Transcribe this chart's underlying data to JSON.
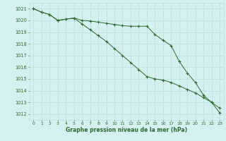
{
  "line1": [
    1021.0,
    1020.7,
    1020.5,
    1020.0,
    1020.1,
    1020.2,
    1020.0,
    1019.95,
    1019.85,
    1019.75,
    1019.65,
    1019.55,
    1019.5,
    1019.5,
    1019.5,
    1018.8,
    1018.3,
    1017.85,
    1016.5,
    1015.5,
    1014.7,
    1013.6,
    1013.0,
    1012.5
  ],
  "line2": [
    1021.0,
    1020.7,
    1020.5,
    1020.0,
    1020.1,
    1020.2,
    1019.7,
    1019.2,
    1018.7,
    1018.2,
    1017.6,
    1017.0,
    1016.4,
    1015.8,
    1015.2,
    1015.0,
    1014.9,
    1014.7,
    1014.4,
    1014.1,
    1013.8,
    1013.4,
    1013.0,
    1012.1
  ],
  "x": [
    0,
    1,
    2,
    3,
    4,
    5,
    6,
    7,
    8,
    9,
    10,
    11,
    12,
    13,
    14,
    15,
    16,
    17,
    18,
    19,
    20,
    21,
    22,
    23
  ],
  "line_color": "#2d6a2d",
  "bg_color": "#d4f0f0",
  "grid_color": "#b8dede",
  "xlabel": "Graphe pression niveau de la mer (hPa)",
  "ylim": [
    1011.5,
    1021.5
  ],
  "xlim": [
    -0.5,
    23.5
  ],
  "yticks": [
    1012,
    1013,
    1014,
    1015,
    1016,
    1017,
    1018,
    1019,
    1020,
    1021
  ],
  "xticks": [
    0,
    1,
    2,
    3,
    4,
    5,
    6,
    7,
    8,
    9,
    10,
    11,
    12,
    13,
    14,
    15,
    16,
    17,
    18,
    19,
    20,
    21,
    22,
    23
  ]
}
